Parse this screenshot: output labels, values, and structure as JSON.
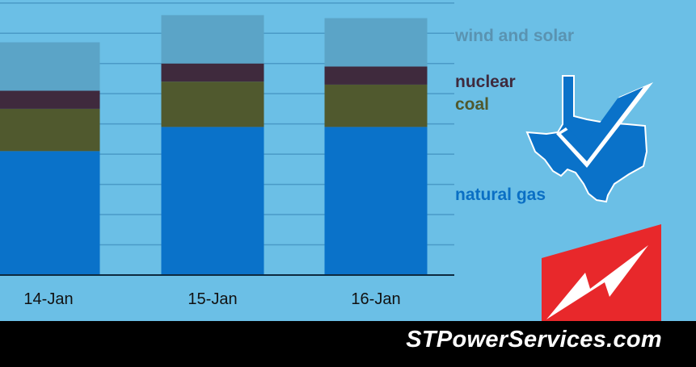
{
  "chart_data": {
    "type": "bar",
    "stacked": true,
    "categories": [
      "14-Jan",
      "15-Jan",
      "16-Jan"
    ],
    "series": [
      {
        "name": "natural gas",
        "color": "#0a72c9",
        "values": [
          41,
          49,
          49
        ]
      },
      {
        "name": "coal",
        "color": "#50592e",
        "values": [
          14,
          15,
          14
        ]
      },
      {
        "name": "nuclear",
        "color": "#3f2a3d",
        "values": [
          6,
          6,
          6
        ]
      },
      {
        "name": "wind and solar",
        "color": "#5ba4c7",
        "values": [
          16,
          16,
          16
        ]
      }
    ],
    "ylim": [
      0,
      91
    ],
    "grid": true,
    "legend": "right"
  },
  "legend_colors": {
    "wind and solar": "#5a93b1",
    "nuclear": "#3f2a3d",
    "coal": "#50592e",
    "natural gas": "#0a6fc4"
  },
  "icons": {
    "texas": "texas-checkmark-icon",
    "logo": "lightning-bolt-logo-icon"
  },
  "footer": {
    "site": "STPowerServices.com"
  }
}
